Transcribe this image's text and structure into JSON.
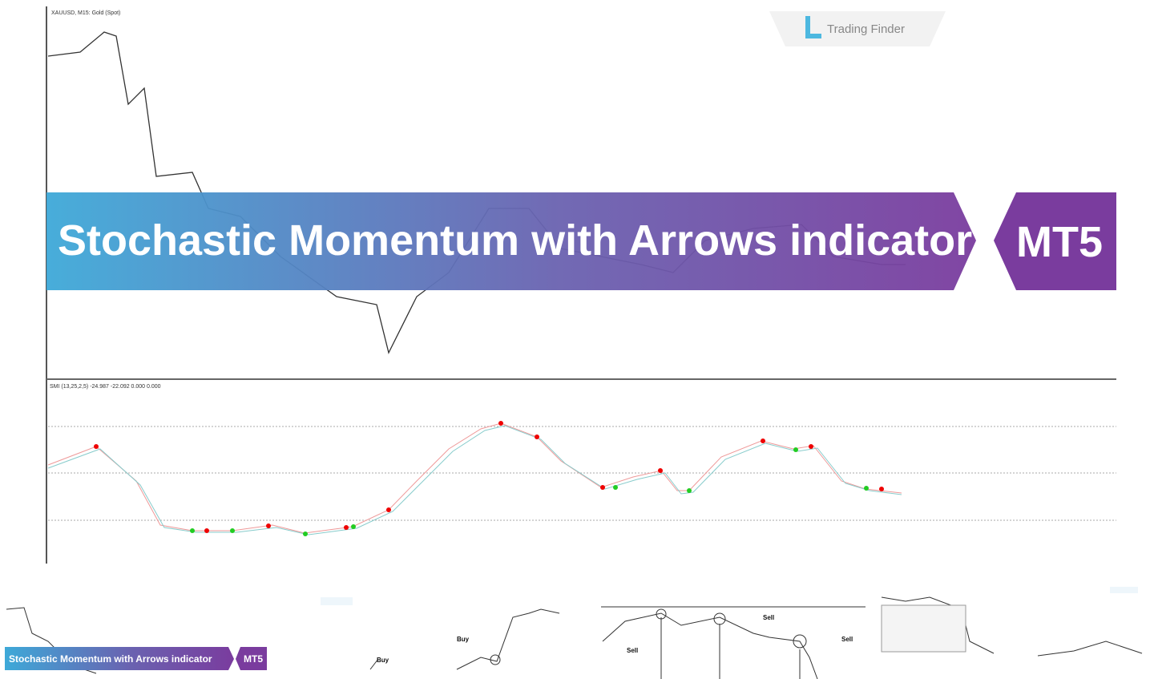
{
  "chart": {
    "symbol_label": "XAUUSD, M15: Gold (Spot)",
    "indicator_label": "SMI (13,25,2,5) -24.987 -22.092 0.000 0.000"
  },
  "logo": "Trading Finder",
  "banner": {
    "title": "Stochastic Momentum with Arrows indicator",
    "badge": "MT5"
  },
  "thumbnails": [
    {
      "title": "Stochastic Momentum with Arrows indicator",
      "badge": "MT5"
    },
    {
      "labels": [
        "Buy",
        "Buy"
      ]
    },
    {
      "labels": [
        "Sell",
        "Sell",
        "Sell"
      ]
    }
  ]
}
